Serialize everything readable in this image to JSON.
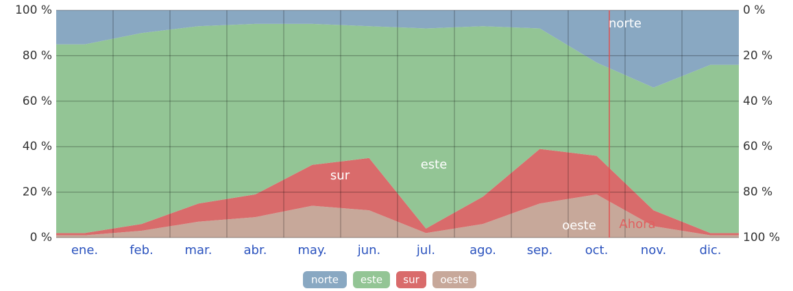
{
  "chart_data": {
    "type": "stacked-area",
    "categories": [
      "ene.",
      "feb.",
      "mar.",
      "abr.",
      "may.",
      "jun.",
      "jul.",
      "ago.",
      "sep.",
      "oct.",
      "nov.",
      "dic."
    ],
    "series": [
      {
        "name": "norte",
        "color": "#89a8c2",
        "values": [
          15,
          10,
          7,
          6,
          6,
          7,
          8,
          7,
          8,
          23,
          34,
          24
        ]
      },
      {
        "name": "este",
        "color": "#93c595",
        "values": [
          83,
          84,
          78,
          75,
          62,
          58,
          88,
          75,
          53,
          41,
          54,
          74
        ]
      },
      {
        "name": "sur",
        "color": "#d96b6b",
        "values": [
          1,
          3,
          8,
          10,
          18,
          23,
          2,
          12,
          24,
          17,
          7,
          1
        ]
      },
      {
        "name": "oeste",
        "color": "#c7a89a",
        "values": [
          1,
          3,
          7,
          9,
          14,
          12,
          2,
          6,
          15,
          19,
          5,
          1
        ]
      }
    ],
    "ylim": [
      0,
      100
    ],
    "yticks": [
      {
        "value": 0,
        "label": "0 %"
      },
      {
        "value": 20,
        "label": "20 %"
      },
      {
        "value": 40,
        "label": "40 %"
      },
      {
        "value": 60,
        "label": "60 %"
      },
      {
        "value": 80,
        "label": "80 %"
      },
      {
        "value": 100,
        "label": "100 %"
      }
    ],
    "y2lim": [
      100,
      0
    ],
    "y2ticks": [
      {
        "value": 100,
        "label": "100 %"
      },
      {
        "value": 80,
        "label": "80 %"
      },
      {
        "value": 60,
        "label": "60 %"
      },
      {
        "value": 40,
        "label": "40 %"
      },
      {
        "value": 20,
        "label": "20 %"
      },
      {
        "value": 0,
        "label": "0 %"
      }
    ],
    "grid": true,
    "annotations": [
      "norte",
      "este",
      "sur",
      "oeste",
      "Ahora"
    ]
  }
}
